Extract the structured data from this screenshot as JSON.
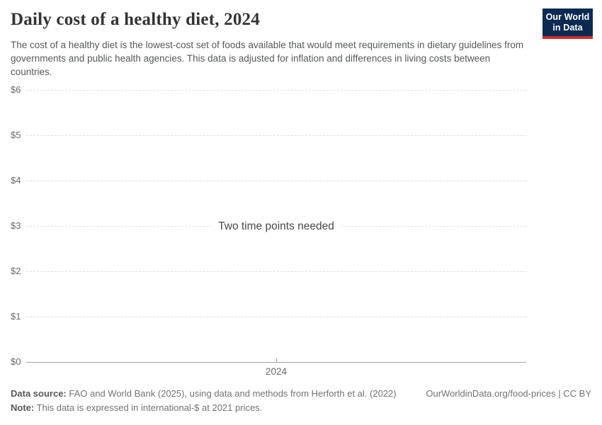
{
  "header": {
    "title": "Daily cost of a healthy diet, 2024",
    "subtitle": "The cost of a healthy diet is the lowest-cost set of foods available that would meet requirements in dietary guidelines from governments and public health agencies. This data is adjusted for inflation and differences in living costs between countries.",
    "logo": {
      "line1": "Our World",
      "line2": "in Data"
    }
  },
  "chart": {
    "empty_message": "Two time points needed",
    "y_axis": {
      "ticks": [
        {
          "label": "$6",
          "value": 6
        },
        {
          "label": "$5",
          "value": 5
        },
        {
          "label": "$4",
          "value": 4
        },
        {
          "label": "$3",
          "value": 3
        },
        {
          "label": "$2",
          "value": 2
        },
        {
          "label": "$1",
          "value": 1
        },
        {
          "label": "$0",
          "value": 0
        }
      ]
    },
    "x_axis": {
      "ticks": [
        {
          "label": "2024"
        }
      ]
    }
  },
  "chart_data": {
    "type": "line",
    "title": "Daily cost of a healthy diet, 2024",
    "x": [
      "2024"
    ],
    "series": [],
    "annotations": [
      "Two time points needed"
    ],
    "xlabel": "",
    "ylabel": "",
    "ylim": [
      0,
      6
    ],
    "ytick_labels": [
      "$0",
      "$1",
      "$2",
      "$3",
      "$4",
      "$5",
      "$6"
    ],
    "grid": true,
    "legend": "none",
    "note": "Empty-state chart: no data series plotted because two time points are required."
  },
  "footer": {
    "data_source_label": "Data source:",
    "data_source": "FAO and World Bank (2025), using data and methods from Herforth et al. (2022)",
    "note_label": "Note:",
    "note": "This data is expressed in international-$ at 2021 prices.",
    "attribution": "OurWorldinData.org/food-prices | CC BY"
  },
  "colors": {
    "logo_bg": "#0a2a52",
    "logo_bar": "#d42b2f",
    "title": "#343434",
    "subtitle": "#56595b",
    "axis_label": "#67696b",
    "gridline": "#e0e0e0",
    "axis_line": "#a5a5a5",
    "empty_message": "#494949",
    "footer_text": "#737373"
  }
}
